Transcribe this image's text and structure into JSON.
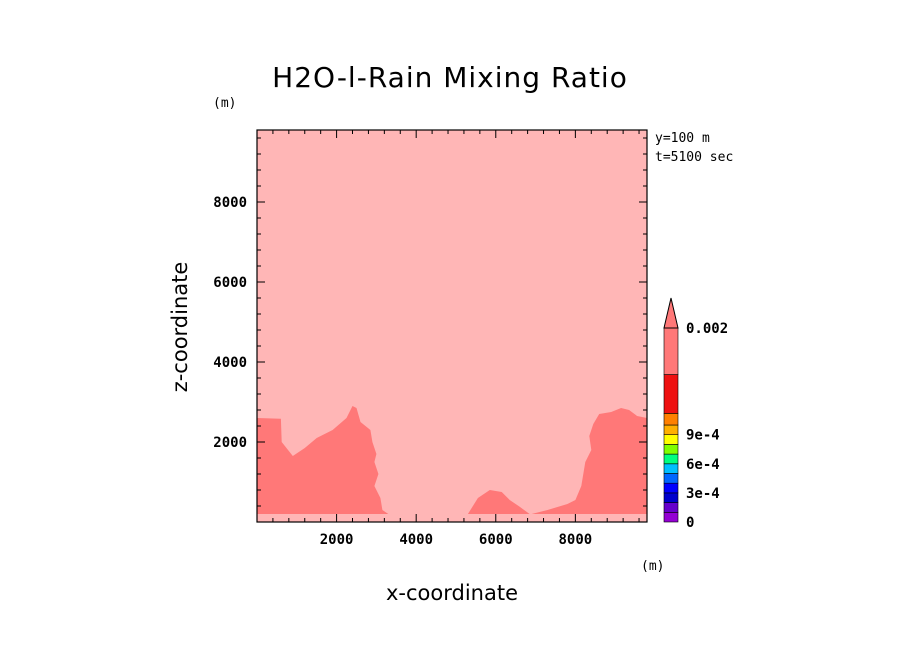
{
  "chart_data": {
    "type": "filled-contour",
    "title": "H2O-l-Rain Mixing Ratio",
    "xlabel": "x-coordinate",
    "ylabel": "z-coordinate",
    "x_unit": "(m)",
    "y_unit": "(m)",
    "annotations": [
      "y=100 m",
      "t=5100 sec"
    ],
    "xlim": [
      0,
      9800
    ],
    "ylim": [
      0,
      9800
    ],
    "xticks": [
      2000,
      4000,
      6000,
      8000
    ],
    "yticks": [
      2000,
      4000,
      6000,
      8000
    ],
    "xtick_labels": [
      "2000",
      "4000",
      "6000",
      "8000"
    ],
    "ytick_labels": [
      "2000",
      "4000",
      "6000",
      "8000"
    ],
    "background_fill": "#ffb6b6",
    "regions": [
      {
        "name": "higher-rain-left",
        "color": "#ff7878",
        "points": [
          [
            0,
            200
          ],
          [
            0,
            2600
          ],
          [
            600,
            2580
          ],
          [
            620,
            2000
          ],
          [
            900,
            1650
          ],
          [
            1200,
            1850
          ],
          [
            1500,
            2100
          ],
          [
            1900,
            2300
          ],
          [
            2250,
            2600
          ],
          [
            2400,
            2900
          ],
          [
            2500,
            2850
          ],
          [
            2600,
            2500
          ],
          [
            2850,
            2300
          ],
          [
            2900,
            2000
          ],
          [
            3000,
            1700
          ],
          [
            2950,
            1500
          ],
          [
            3050,
            1200
          ],
          [
            2950,
            900
          ],
          [
            3100,
            600
          ],
          [
            3150,
            300
          ],
          [
            3300,
            200
          ]
        ]
      },
      {
        "name": "higher-rain-center",
        "color": "#ff7878",
        "points": [
          [
            5300,
            200
          ],
          [
            5550,
            600
          ],
          [
            5850,
            800
          ],
          [
            6150,
            750
          ],
          [
            6350,
            550
          ],
          [
            6600,
            380
          ],
          [
            6850,
            200
          ]
        ]
      },
      {
        "name": "higher-rain-right",
        "color": "#ff7878",
        "points": [
          [
            6900,
            200
          ],
          [
            7300,
            300
          ],
          [
            7800,
            450
          ],
          [
            8000,
            550
          ],
          [
            8150,
            900
          ],
          [
            8250,
            1500
          ],
          [
            8400,
            1800
          ],
          [
            8350,
            2150
          ],
          [
            8450,
            2450
          ],
          [
            8600,
            2700
          ],
          [
            8900,
            2750
          ],
          [
            9150,
            2850
          ],
          [
            9350,
            2800
          ],
          [
            9550,
            2650
          ],
          [
            9800,
            2600
          ],
          [
            9800,
            200
          ]
        ]
      }
    ],
    "colorbar": {
      "levels": [
        0,
        0.0001,
        0.0002,
        0.0003,
        0.0004,
        0.0005,
        0.0006,
        0.0007,
        0.0008,
        0.0009,
        0.001,
        0.0015,
        0.002
      ],
      "colors": [
        "#9400d3",
        "#6600cc",
        "#0000cd",
        "#0000ff",
        "#0066ff",
        "#00bfff",
        "#00ff7f",
        "#7fff00",
        "#ffff00",
        "#ffb000",
        "#ff8000",
        "#ee1111",
        "#ff7878"
      ],
      "extend": "max",
      "labels": [
        "0",
        "3e-4",
        "6e-4",
        "9e-4",
        "0.002"
      ],
      "label_values": [
        0,
        0.0003,
        0.0006,
        0.0009,
        0.002
      ]
    }
  }
}
